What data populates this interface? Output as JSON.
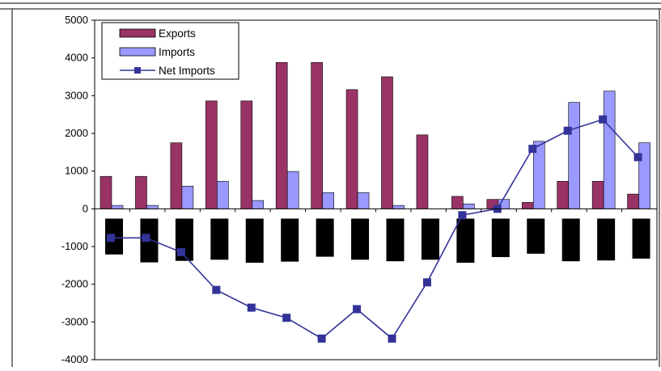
{
  "chart_data": {
    "type": "bar",
    "title": "",
    "xlabel": "",
    "ylabel": "",
    "ylim": [
      -4000,
      5000
    ],
    "yticks": [
      5000,
      4000,
      3000,
      2000,
      1000,
      0,
      -1000,
      -2000,
      -3000,
      -4000
    ],
    "grid": false,
    "legend_position": "top-left",
    "categories_count": 16,
    "series": [
      {
        "name": "Exports",
        "type": "bar",
        "color": "#993366",
        "values": [
          860,
          860,
          1750,
          2860,
          2860,
          3880,
          3880,
          3160,
          3500,
          1960,
          330,
          250,
          170,
          730,
          730,
          390
        ]
      },
      {
        "name": "Imports",
        "type": "bar",
        "color": "#9999ff",
        "values": [
          90,
          90,
          600,
          730,
          220,
          990,
          430,
          430,
          90,
          0,
          130,
          250,
          1790,
          2820,
          3120,
          1750
        ]
      },
      {
        "name": "Net Imports",
        "type": "line",
        "color": "#333399",
        "marker": "square",
        "values": [
          -770,
          -770,
          -1150,
          -2150,
          -2620,
          -2890,
          -3440,
          -2660,
          -3440,
          -1950,
          -170,
          0,
          1590,
          2070,
          2370,
          1370
        ]
      },
      {
        "type": "bar",
        "color": "#000000",
        "legend": false,
        "values": [
          -1210,
          -1420,
          -1380,
          -1350,
          -1430,
          -1400,
          -1270,
          -1350,
          -1390,
          -1350,
          -1430,
          -1280,
          -1190,
          -1390,
          -1370,
          -1320
        ]
      }
    ]
  }
}
